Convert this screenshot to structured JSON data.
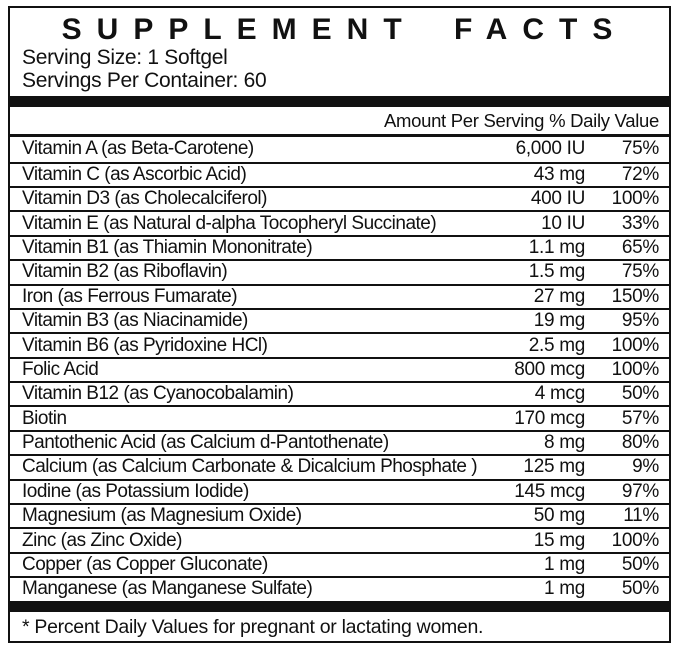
{
  "label": {
    "title": "SUPPLEMENT FACTS",
    "serving_size": "Serving Size: 1 Softgel",
    "servings_per_container": "Servings Per Container: 60",
    "columns": {
      "amount": "Amount Per Serving",
      "daily_value": "% Daily Value"
    },
    "rows": [
      {
        "name": "Vitamin A (as Beta-Carotene)",
        "amount": "6,000 IU",
        "dv": "75%"
      },
      {
        "name": "Vitamin C (as Ascorbic Acid)",
        "amount": "43 mg",
        "dv": "72%"
      },
      {
        "name": "Vitamin D3 (as Cholecalciferol)",
        "amount": "400 IU",
        "dv": "100%"
      },
      {
        "name": "Vitamin E (as Natural d-alpha Tocopheryl Succinate)",
        "amount": "10 IU",
        "dv": "33%"
      },
      {
        "name": "Vitamin B1 (as Thiamin Mononitrate)",
        "amount": "1.1 mg",
        "dv": "65%"
      },
      {
        "name": "Vitamin B2 (as Riboflavin)",
        "amount": "1.5 mg",
        "dv": "75%"
      },
      {
        "name": "Iron (as Ferrous Fumarate)",
        "amount": "27 mg",
        "dv": "150%"
      },
      {
        "name": "Vitamin B3 (as Niacinamide)",
        "amount": "19 mg",
        "dv": "95%"
      },
      {
        "name": "Vitamin B6 (as Pyridoxine HCl)",
        "amount": "2.5 mg",
        "dv": "100%"
      },
      {
        "name": "Folic Acid",
        "amount": "800 mcg",
        "dv": "100%"
      },
      {
        "name": "Vitamin B12 (as Cyanocobalamin)",
        "amount": "4 mcg",
        "dv": "50%"
      },
      {
        "name": "Biotin",
        "amount": "170 mcg",
        "dv": "57%"
      },
      {
        "name": "Pantothenic Acid (as Calcium d-Pantothenate)",
        "amount": "8 mg",
        "dv": "80%"
      },
      {
        "name": "Calcium (as Calcium Carbonate & Dicalcium Phosphate )",
        "amount": "125 mg",
        "dv": "9%"
      },
      {
        "name": "Iodine (as Potassium Iodide)",
        "amount": "145 mcg",
        "dv": "97%"
      },
      {
        "name": "Magnesium (as Magnesium Oxide)",
        "amount": "50 mg",
        "dv": "11%"
      },
      {
        "name": "Zinc (as Zinc Oxide)",
        "amount": "15 mg",
        "dv": "100%"
      },
      {
        "name": "Copper (as Copper Gluconate)",
        "amount": "1 mg",
        "dv": "50%"
      },
      {
        "name": "Manganese (as Manganese Sulfate)",
        "amount": "1 mg",
        "dv": "50%"
      }
    ],
    "footnote": "* Percent Daily Values for pregnant or lactating women.",
    "colors": {
      "ink": "#111111",
      "background": "#ffffff"
    }
  }
}
